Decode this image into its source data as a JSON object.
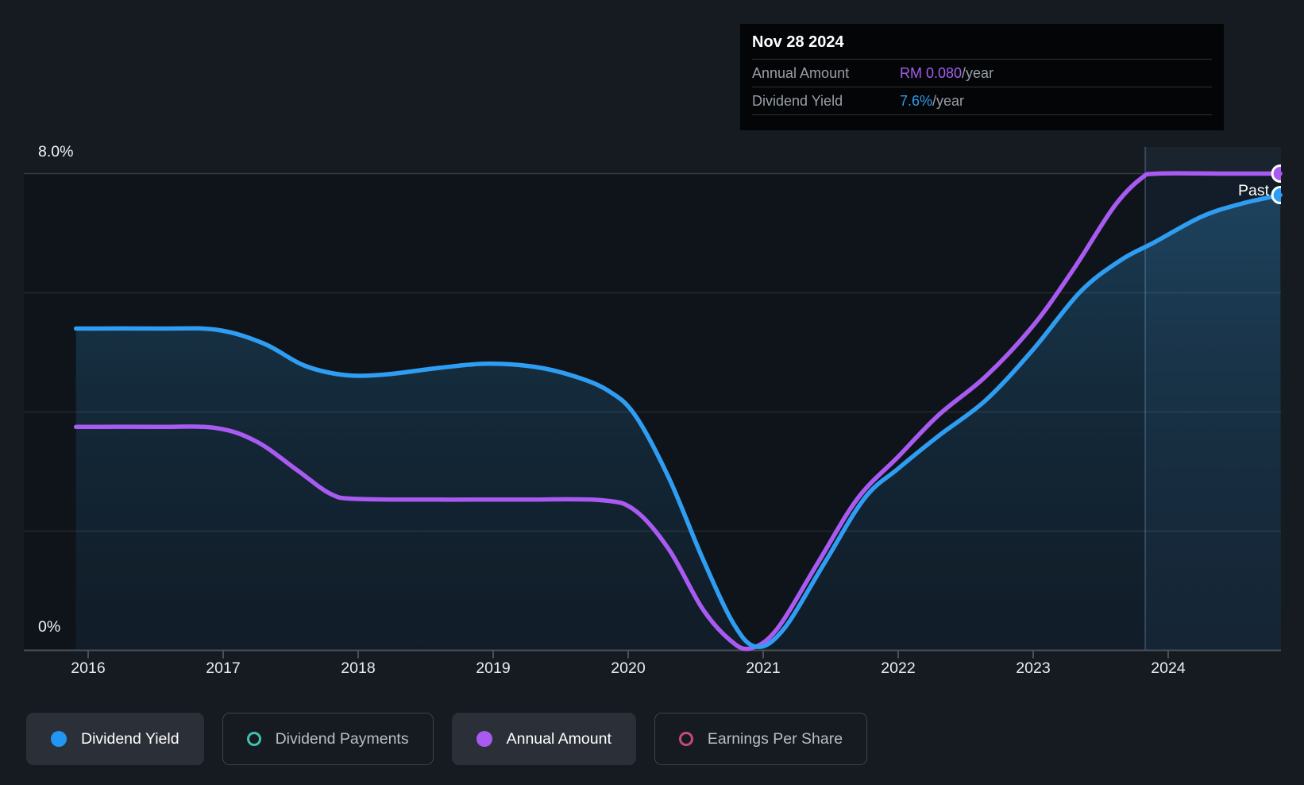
{
  "tooltip": {
    "date": "Nov 28 2024",
    "rows": [
      {
        "label": "Annual Amount",
        "value": "RM 0.080",
        "suffix": "/year",
        "color": "#a55ef0"
      },
      {
        "label": "Dividend Yield",
        "value": "7.6%",
        "suffix": "/year",
        "color": "#2d9cee"
      }
    ]
  },
  "legend": {
    "items": [
      {
        "label": "Dividend Yield",
        "color": "#2196f3",
        "style": "filled-dot",
        "active": true
      },
      {
        "label": "Dividend Payments",
        "color": "#41c0ad",
        "style": "ring",
        "active": false
      },
      {
        "label": "Annual Amount",
        "color": "#a95af0",
        "style": "filled-dot",
        "active": true
      },
      {
        "label": "Earnings Per Share",
        "color": "#c64a82",
        "style": "ring",
        "active": false
      }
    ]
  },
  "chart_data": {
    "type": "area",
    "title": "",
    "ylabel_top": "8.0%",
    "ylabel_bottom": "0%",
    "ylim": [
      0,
      8
    ],
    "y_unit": "percent dividend yield",
    "y_gridlines_pct": [
      8,
      6,
      4,
      2
    ],
    "categories": [
      2016,
      2017,
      2018,
      2019,
      2020,
      2021,
      2022,
      2023,
      2024
    ],
    "past_label": "Past",
    "past_region_start_year": 2023.83,
    "legend_position": "bottom",
    "series": [
      {
        "name": "Dividend Yield",
        "color": "#2e9df2",
        "fill": true,
        "marker_end": true,
        "end_value_pct": 7.6,
        "points": [
          [
            2015.91,
            5.4
          ],
          [
            2016.5,
            5.4
          ],
          [
            2016.95,
            5.38
          ],
          [
            2017.3,
            5.15
          ],
          [
            2017.6,
            4.78
          ],
          [
            2017.9,
            4.62
          ],
          [
            2018.2,
            4.63
          ],
          [
            2018.6,
            4.74
          ],
          [
            2018.95,
            4.81
          ],
          [
            2019.3,
            4.76
          ],
          [
            2019.6,
            4.6
          ],
          [
            2019.85,
            4.36
          ],
          [
            2020.05,
            3.95
          ],
          [
            2020.3,
            2.9
          ],
          [
            2020.55,
            1.55
          ],
          [
            2020.78,
            0.45
          ],
          [
            2020.95,
            0.06
          ],
          [
            2021.15,
            0.35
          ],
          [
            2021.45,
            1.45
          ],
          [
            2021.75,
            2.55
          ],
          [
            2022.0,
            3.05
          ],
          [
            2022.3,
            3.6
          ],
          [
            2022.65,
            4.2
          ],
          [
            2023.0,
            5.05
          ],
          [
            2023.35,
            6.02
          ],
          [
            2023.65,
            6.55
          ],
          [
            2023.9,
            6.85
          ],
          [
            2024.25,
            7.28
          ],
          [
            2024.55,
            7.5
          ],
          [
            2024.83,
            7.64
          ]
        ]
      },
      {
        "name": "Annual Amount",
        "color": "#a95af0",
        "fill": false,
        "marker_end": true,
        "end_value_label": "RM 0.080/year",
        "points": [
          [
            2015.91,
            3.75
          ],
          [
            2016.5,
            3.75
          ],
          [
            2016.95,
            3.73
          ],
          [
            2017.25,
            3.5
          ],
          [
            2017.55,
            3.02
          ],
          [
            2017.8,
            2.62
          ],
          [
            2018.0,
            2.54
          ],
          [
            2018.6,
            2.53
          ],
          [
            2019.2,
            2.53
          ],
          [
            2019.8,
            2.52
          ],
          [
            2020.05,
            2.35
          ],
          [
            2020.3,
            1.7
          ],
          [
            2020.55,
            0.7
          ],
          [
            2020.75,
            0.18
          ],
          [
            2020.9,
            0.03
          ],
          [
            2021.1,
            0.35
          ],
          [
            2021.4,
            1.45
          ],
          [
            2021.7,
            2.55
          ],
          [
            2022.0,
            3.25
          ],
          [
            2022.3,
            3.95
          ],
          [
            2022.65,
            4.6
          ],
          [
            2023.0,
            5.45
          ],
          [
            2023.3,
            6.4
          ],
          [
            2023.6,
            7.45
          ],
          [
            2023.8,
            7.92
          ],
          [
            2023.92,
            8.0
          ],
          [
            2024.4,
            8.0
          ],
          [
            2024.83,
            8.0
          ]
        ]
      },
      {
        "name": "Dividend Payments",
        "color": "#41c0ad",
        "visible": false,
        "points": []
      },
      {
        "name": "Earnings Per Share",
        "color": "#c64a82",
        "visible": false,
        "points": []
      }
    ]
  },
  "colors": {
    "page_bg": "#161b22",
    "tooltip_bg": "#040507",
    "grid": "rgba(210,220,230,0.11)",
    "axis": "#4a5058",
    "past_region_fill": "rgba(90,160,220,0.07)",
    "past_divider": "rgba(140,190,235,0.25)"
  }
}
